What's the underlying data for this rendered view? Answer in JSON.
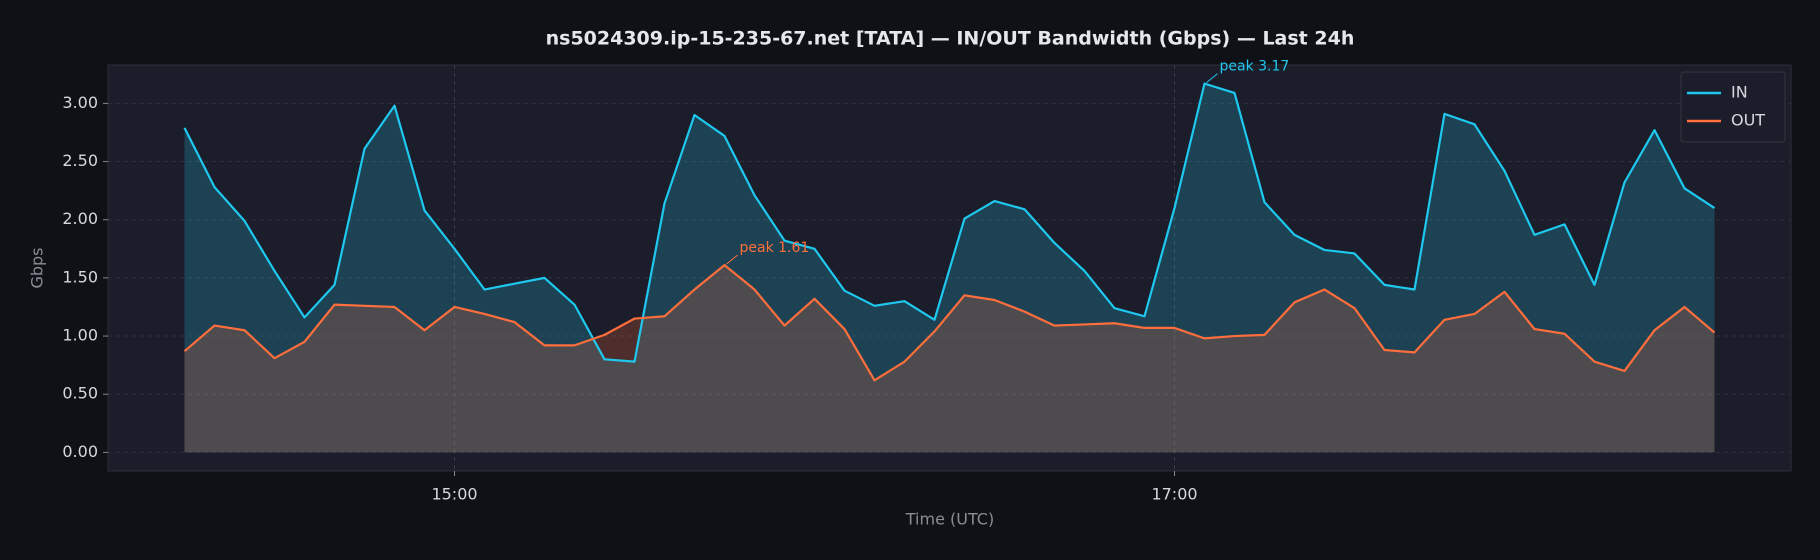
{
  "chart_data": {
    "type": "line",
    "title": "ns5024309.ip-15-235-67.net [TATA] — IN/OUT Bandwidth (Gbps) — Last 24h",
    "xlabel": "Time (UTC)",
    "ylabel": "Gbps",
    "x": [
      "14:15",
      "14:20",
      "14:25",
      "14:30",
      "14:35",
      "14:40",
      "14:45",
      "14:50",
      "14:55",
      "15:00",
      "15:05",
      "15:10",
      "15:15",
      "15:20",
      "15:25",
      "15:30",
      "15:35",
      "15:40",
      "15:45",
      "15:50",
      "15:55",
      "16:00",
      "16:05",
      "16:10",
      "16:15",
      "16:20",
      "16:25",
      "16:30",
      "16:35",
      "16:40",
      "16:45",
      "16:50",
      "16:55",
      "17:00",
      "17:05",
      "17:10",
      "17:15",
      "17:20",
      "17:25",
      "17:30",
      "17:35",
      "17:40",
      "17:45",
      "17:50",
      "17:55",
      "18:00",
      "18:05",
      "18:10",
      "18:15",
      "18:20",
      "18:25",
      "18:30"
    ],
    "xlim": [
      "14:02:15",
      "18:42:45"
    ],
    "xticks": [
      "15:00",
      "17:00"
    ],
    "ylim": [
      -0.16,
      3.33
    ],
    "yticks": [
      {
        "value": 0,
        "label": "0.00"
      },
      {
        "value": 0.5,
        "label": "0.50"
      },
      {
        "value": 1,
        "label": "1.00"
      },
      {
        "value": 1.5,
        "label": "1.50"
      },
      {
        "value": 2,
        "label": "2.00"
      },
      {
        "value": 2.5,
        "label": "2.50"
      },
      {
        "value": 3,
        "label": "3.00"
      }
    ],
    "grid": true,
    "legend": "upper right",
    "series": [
      {
        "name": "IN",
        "color": "#1fc8ee",
        "peak_label": "peak 3.17",
        "values": [
          2.79,
          2.28,
          1.99,
          1.56,
          1.16,
          1.44,
          2.61,
          2.98,
          2.08,
          1.75,
          1.4,
          1.45,
          1.5,
          1.27,
          0.8,
          0.78,
          2.14,
          2.9,
          2.72,
          2.21,
          1.82,
          1.75,
          1.39,
          1.26,
          1.3,
          1.14,
          2.01,
          2.16,
          2.09,
          1.8,
          1.56,
          1.24,
          1.17,
          2.1,
          3.17,
          3.09,
          2.15,
          1.87,
          1.74,
          1.71,
          1.44,
          1.4,
          2.91,
          2.82,
          2.42,
          1.87,
          1.96,
          1.44,
          2.32,
          2.77,
          2.27,
          2.1
        ]
      },
      {
        "name": "OUT",
        "color": "#ff6e3c",
        "peak_label": "peak 1.61",
        "values": [
          0.87,
          1.09,
          1.05,
          0.81,
          0.95,
          1.27,
          1.26,
          1.25,
          1.05,
          1.25,
          1.19,
          1.12,
          0.92,
          0.92,
          1.01,
          1.15,
          1.17,
          1.4,
          1.61,
          1.4,
          1.09,
          1.32,
          1.06,
          0.62,
          0.78,
          1.04,
          1.35,
          1.31,
          1.21,
          1.09,
          1.1,
          1.11,
          1.07,
          1.07,
          0.98,
          1.0,
          1.01,
          1.29,
          1.4,
          1.24,
          0.88,
          0.86,
          1.14,
          1.19,
          1.38,
          1.06,
          1.02,
          0.78,
          0.7,
          1.05,
          1.25,
          1.03
        ]
      }
    ]
  }
}
